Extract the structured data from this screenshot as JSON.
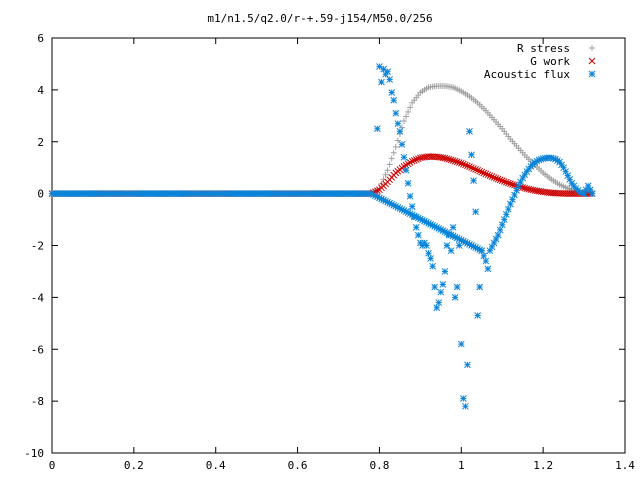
{
  "chart_data": {
    "type": "scatter",
    "title": "m1/n1.5/q2.0/r-+.59-j154/M50.0/256",
    "xlabel": "",
    "ylabel": "",
    "xlim": [
      0,
      1.4
    ],
    "ylim": [
      -10,
      6
    ],
    "x_ticks": [
      "0",
      "0.2",
      "0.4",
      "0.6",
      "0.8",
      "1",
      "1.2",
      "1.4"
    ],
    "y_ticks": [
      "6",
      "4",
      "2",
      "0",
      "-2",
      "-4",
      "-6",
      "-8",
      "-10"
    ],
    "legend_position": "top-right",
    "grid": false,
    "series": [
      {
        "name": "R stress",
        "marker": "+",
        "color": "#a0a0a0",
        "description_points": [
          [
            0.0,
            0
          ],
          [
            0.78,
            0
          ],
          [
            0.8,
            0.2
          ],
          [
            0.82,
            0.9
          ],
          [
            0.84,
            1.8
          ],
          [
            0.86,
            2.8
          ],
          [
            0.88,
            3.5
          ],
          [
            0.9,
            3.9
          ],
          [
            0.92,
            4.1
          ],
          [
            0.94,
            4.15
          ],
          [
            0.96,
            4.15
          ],
          [
            0.98,
            4.1
          ],
          [
            1.0,
            3.95
          ],
          [
            1.02,
            3.75
          ],
          [
            1.04,
            3.5
          ],
          [
            1.06,
            3.2
          ],
          [
            1.08,
            2.85
          ],
          [
            1.1,
            2.5
          ],
          [
            1.12,
            2.1
          ],
          [
            1.14,
            1.75
          ],
          [
            1.16,
            1.4
          ],
          [
            1.18,
            1.1
          ],
          [
            1.2,
            0.8
          ],
          [
            1.22,
            0.55
          ],
          [
            1.24,
            0.35
          ],
          [
            1.26,
            0.2
          ],
          [
            1.28,
            0.1
          ],
          [
            1.3,
            0.04
          ],
          [
            1.32,
            0.01
          ]
        ]
      },
      {
        "name": "G work",
        "marker": "x",
        "color": "#cc0000",
        "description_points": [
          [
            0.0,
            0
          ],
          [
            0.78,
            0
          ],
          [
            0.8,
            0.15
          ],
          [
            0.82,
            0.45
          ],
          [
            0.84,
            0.8
          ],
          [
            0.86,
            1.05
          ],
          [
            0.88,
            1.25
          ],
          [
            0.9,
            1.38
          ],
          [
            0.92,
            1.43
          ],
          [
            0.94,
            1.42
          ],
          [
            0.96,
            1.37
          ],
          [
            0.98,
            1.28
          ],
          [
            1.0,
            1.17
          ],
          [
            1.02,
            1.04
          ],
          [
            1.04,
            0.9
          ],
          [
            1.06,
            0.76
          ],
          [
            1.08,
            0.62
          ],
          [
            1.1,
            0.5
          ],
          [
            1.12,
            0.38
          ],
          [
            1.14,
            0.28
          ],
          [
            1.16,
            0.19
          ],
          [
            1.18,
            0.12
          ],
          [
            1.2,
            0.07
          ],
          [
            1.22,
            0.03
          ],
          [
            1.24,
            0.01
          ],
          [
            1.26,
            0.0
          ],
          [
            1.28,
            0.0
          ],
          [
            1.3,
            0.0
          ],
          [
            1.32,
            0.0
          ]
        ]
      },
      {
        "name": "Acoustic flux",
        "marker": "*",
        "color": "#0a84d8",
        "scattered_points": [
          [
            0.795,
            2.5
          ],
          [
            0.8,
            4.9
          ],
          [
            0.805,
            4.3
          ],
          [
            0.81,
            4.8
          ],
          [
            0.815,
            4.6
          ],
          [
            0.82,
            4.7
          ],
          [
            0.825,
            4.4
          ],
          [
            0.83,
            3.9
          ],
          [
            0.835,
            3.6
          ],
          [
            0.84,
            3.1
          ],
          [
            0.845,
            2.7
          ],
          [
            0.85,
            2.4
          ],
          [
            0.855,
            1.9
          ],
          [
            0.86,
            1.4
          ],
          [
            0.865,
            0.9
          ],
          [
            0.87,
            0.4
          ],
          [
            0.875,
            -0.1
          ],
          [
            0.88,
            -0.5
          ],
          [
            0.885,
            -0.9
          ],
          [
            0.89,
            -1.3
          ],
          [
            0.895,
            -1.6
          ],
          [
            0.9,
            -1.9
          ],
          [
            0.905,
            -2.0
          ],
          [
            0.91,
            -1.9
          ],
          [
            0.915,
            -2.0
          ],
          [
            0.92,
            -2.3
          ],
          [
            0.925,
            -2.5
          ],
          [
            0.93,
            -2.8
          ],
          [
            0.935,
            -3.6
          ],
          [
            0.94,
            -4.4
          ],
          [
            0.945,
            -4.2
          ],
          [
            0.95,
            -3.8
          ],
          [
            0.955,
            -3.5
          ],
          [
            0.96,
            -3.0
          ],
          [
            0.965,
            -2.0
          ],
          [
            0.97,
            -1.6
          ],
          [
            0.975,
            -2.2
          ],
          [
            0.98,
            -1.3
          ],
          [
            0.985,
            -4.0
          ],
          [
            0.99,
            -3.6
          ],
          [
            0.995,
            -2.0
          ],
          [
            1.0,
            -5.8
          ],
          [
            1.005,
            -7.9
          ],
          [
            1.01,
            -8.2
          ],
          [
            1.015,
            -6.6
          ],
          [
            1.02,
            2.4
          ],
          [
            1.025,
            1.5
          ],
          [
            1.03,
            0.5
          ],
          [
            1.035,
            -0.7
          ],
          [
            1.04,
            -4.7
          ],
          [
            1.045,
            -3.6
          ],
          [
            1.05,
            -2.2
          ]
        ],
        "description_points": [
          [
            0.0,
            0
          ],
          [
            0.78,
            0
          ],
          [
            1.05,
            -2.2
          ],
          [
            1.06,
            -2.6
          ],
          [
            1.065,
            -2.9
          ],
          [
            1.07,
            -2.2
          ],
          [
            1.08,
            -1.9
          ],
          [
            1.09,
            -1.6
          ],
          [
            1.1,
            -1.2
          ],
          [
            1.11,
            -0.8
          ],
          [
            1.12,
            -0.4
          ],
          [
            1.13,
            -0.05
          ],
          [
            1.14,
            0.3
          ],
          [
            1.15,
            0.6
          ],
          [
            1.16,
            0.85
          ],
          [
            1.17,
            1.05
          ],
          [
            1.18,
            1.2
          ],
          [
            1.19,
            1.3
          ],
          [
            1.2,
            1.35
          ],
          [
            1.21,
            1.38
          ],
          [
            1.22,
            1.38
          ],
          [
            1.23,
            1.33
          ],
          [
            1.24,
            1.22
          ],
          [
            1.25,
            1.0
          ],
          [
            1.26,
            0.7
          ],
          [
            1.27,
            0.4
          ],
          [
            1.28,
            0.2
          ],
          [
            1.29,
            0.05
          ],
          [
            1.3,
            0.0
          ],
          [
            1.31,
            0.3
          ],
          [
            1.32,
            0.0
          ]
        ]
      }
    ]
  }
}
